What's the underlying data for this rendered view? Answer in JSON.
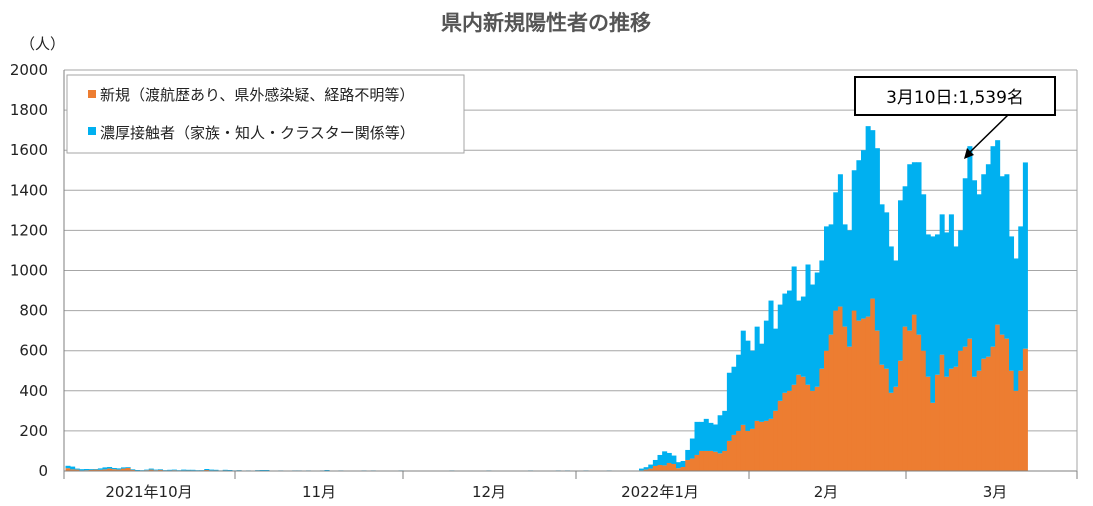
{
  "chart_data": {
    "type": "bar",
    "stacked": true,
    "title": "県内新規陽性者の推移",
    "ylabel": "（人）",
    "ylim": [
      0,
      2000
    ],
    "yticks": [
      0,
      200,
      400,
      600,
      800,
      1000,
      1200,
      1400,
      1600,
      1800,
      2000
    ],
    "xlabels": [
      "2021年10月",
      "11月",
      "12月",
      "2022年1月",
      "2月",
      "3月"
    ],
    "grid": true,
    "legend_position": "top-left",
    "series": [
      {
        "name": "新規（渡航歴あり、県外感染疑、経路不明等）",
        "color": "#ED7D31",
        "values": [
          14,
          8,
          7,
          3,
          4,
          6,
          7,
          6,
          8,
          12,
          9,
          7,
          12,
          15,
          6,
          3,
          2,
          4,
          7,
          4,
          6,
          3,
          3,
          4,
          2,
          3,
          4,
          3,
          2,
          3,
          5,
          3,
          4,
          2,
          4,
          3,
          2,
          3,
          1,
          2,
          1,
          3,
          3,
          2,
          1,
          0,
          2,
          1,
          0,
          1,
          2,
          1,
          1,
          0,
          1,
          1,
          2,
          1,
          1,
          2,
          1,
          1,
          0,
          0,
          2,
          1,
          1,
          1,
          0,
          1,
          1,
          1,
          1,
          0,
          1,
          0,
          1,
          0,
          0,
          0,
          0,
          1,
          0,
          1,
          0,
          0,
          0,
          0,
          0,
          0,
          0,
          1,
          0,
          0,
          1,
          0,
          0,
          0,
          0,
          0,
          1,
          0,
          0,
          0,
          0,
          0,
          1,
          0,
          1,
          0,
          0,
          0,
          1,
          0,
          0,
          0,
          0,
          1,
          0,
          0,
          1,
          0,
          0,
          0,
          3,
          7,
          12,
          25,
          30,
          28,
          40,
          35,
          14,
          20,
          55,
          62,
          80,
          100,
          100,
          100,
          96,
          88,
          100,
          150,
          180,
          200,
          230,
          200,
          210,
          250,
          245,
          250,
          260,
          300,
          350,
          390,
          400,
          430,
          480,
          470,
          430,
          400,
          420,
          510,
          600,
          680,
          800,
          820,
          720,
          620,
          800,
          750,
          760,
          770,
          860,
          700,
          530,
          510,
          390,
          420,
          550,
          720,
          700,
          780,
          680,
          600,
          470,
          340,
          480,
          580,
          470,
          510,
          520,
          600,
          620,
          660,
          470,
          500,
          560,
          570,
          620,
          730,
          680,
          660,
          500,
          400,
          500,
          610
        ]
      },
      {
        "name": "濃厚接触者（家族・知人・クラスター関係等）",
        "color": "#00B0F0",
        "values": [
          12,
          14,
          5,
          6,
          6,
          4,
          3,
          7,
          10,
          8,
          6,
          6,
          6,
          4,
          3,
          2,
          2,
          3,
          5,
          3,
          3,
          1,
          3,
          3,
          2,
          4,
          2,
          3,
          2,
          1,
          5,
          4,
          2,
          1,
          2,
          2,
          1,
          1,
          1,
          1,
          1,
          1,
          2,
          3,
          1,
          1,
          1,
          1,
          1,
          2,
          1,
          1,
          2,
          1,
          1,
          2,
          3,
          1,
          1,
          1,
          1,
          1,
          1,
          1,
          1,
          1,
          2,
          1,
          1,
          1,
          1,
          1,
          2,
          1,
          1,
          1,
          1,
          1,
          1,
          1,
          1,
          1,
          1,
          2,
          1,
          1,
          1,
          1,
          1,
          1,
          1,
          2,
          1,
          1,
          1,
          1,
          1,
          1,
          1,
          1,
          2,
          1,
          1,
          1,
          1,
          1,
          2,
          1,
          2,
          1,
          1,
          1,
          2,
          1,
          1,
          1,
          1,
          2,
          1,
          1,
          1,
          1,
          1,
          1,
          9,
          12,
          20,
          30,
          50,
          70,
          50,
          42,
          30,
          30,
          50,
          100,
          165,
          145,
          160,
          140,
          136,
          190,
          200,
          340,
          340,
          380,
          470,
          450,
          390,
          470,
          390,
          500,
          590,
          410,
          480,
          495,
          500,
          590,
          370,
          400,
          600,
          530,
          570,
          540,
          620,
          550,
          590,
          660,
          510,
          580,
          700,
          800,
          840,
          950,
          840,
          910,
          800,
          780,
          730,
          630,
          800,
          700,
          830,
          760,
          860,
          780,
          710,
          830,
          700,
          700,
          720,
          770,
          600,
          600,
          840,
          960,
          980,
          880,
          920,
          960,
          1000,
          920,
          790,
          820,
          670,
          660,
          720,
          929
        ]
      }
    ],
    "annotation": "3月10日:1,539名"
  },
  "colors": {
    "grid": "#a6a6a6",
    "axis": "#7f7f7f",
    "title": "#555555"
  }
}
